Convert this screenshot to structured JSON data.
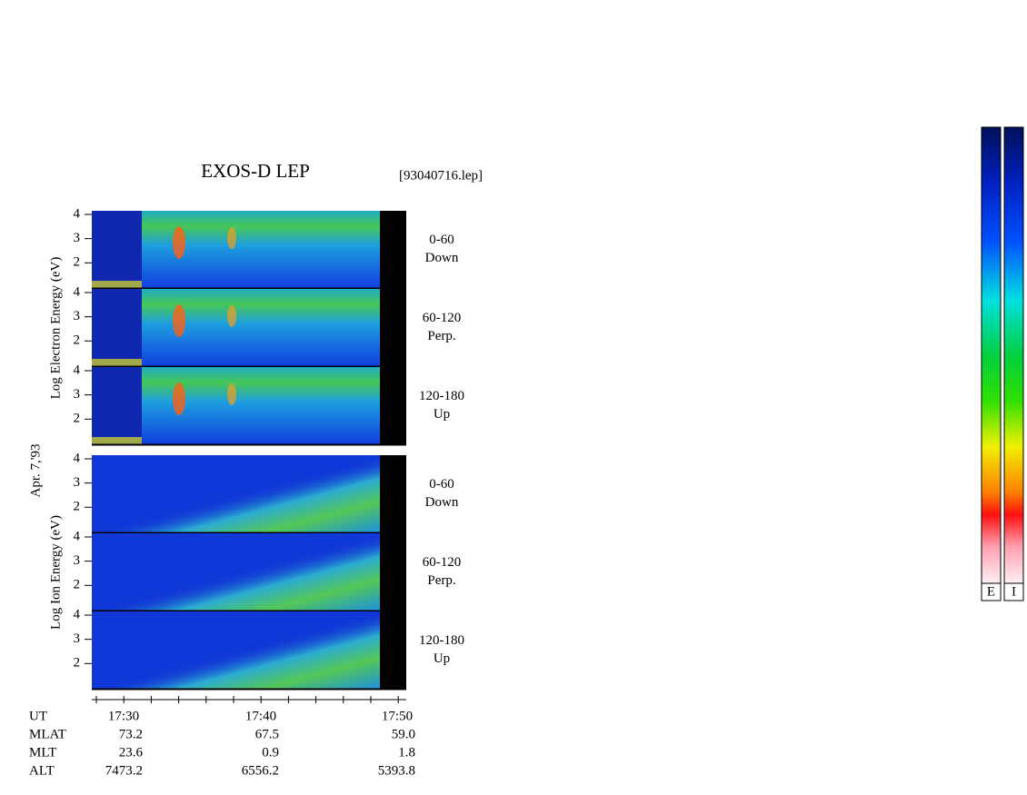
{
  "chart_data": {
    "type": "spectrogram",
    "title": "EXOS-D LEP",
    "file_label": "[93040716.lep]",
    "date_label": "Apr. 7,'93",
    "ylim": [
      0.96,
      4.15
    ],
    "yticks": [
      2,
      3,
      4
    ],
    "groups": [
      {
        "ylabel": "Log  Electron  Energy (eV)",
        "panels": [
          {
            "angle": "0-60",
            "direction": "Down"
          },
          {
            "angle": "60-120",
            "direction": "Perp."
          },
          {
            "angle": "120-180",
            "direction": "Up"
          }
        ]
      },
      {
        "ylabel": "Log  Ion  Energy (eV)",
        "panels": [
          {
            "angle": "0-60",
            "direction": "Down"
          },
          {
            "angle": "60-120",
            "direction": "Perp."
          },
          {
            "angle": "120-180",
            "direction": "Up"
          }
        ]
      }
    ],
    "ephemeris": [
      {
        "name": "UT",
        "values": [
          "17:30",
          "17:40",
          "17:50"
        ]
      },
      {
        "name": "MLAT",
        "values": [
          "73.2",
          "67.5",
          "59.0"
        ]
      },
      {
        "name": "MLT",
        "values": [
          "23.6",
          "0.9",
          "1.8"
        ]
      },
      {
        "name": "ALT",
        "values": [
          "7473.2",
          "6556.2",
          "5393.8"
        ]
      }
    ],
    "colorbar_labels": [
      "E",
      "I"
    ]
  }
}
